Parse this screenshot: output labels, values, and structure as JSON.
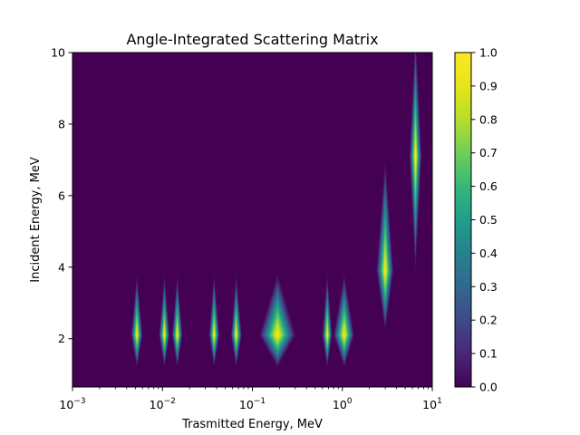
{
  "chart_data": {
    "type": "heatmap",
    "title": "Angle-Integrated Scattering Matrix",
    "xlabel": "Trasmitted Energy, MeV",
    "ylabel": "Incident Energy, MeV",
    "xscale": "log",
    "xlim": [
      0.001,
      10
    ],
    "ylim": [
      0.65,
      10
    ],
    "x_tick_labels": [
      {
        "value": 0.001,
        "base": "10",
        "exp": "−3"
      },
      {
        "value": 0.01,
        "base": "10",
        "exp": "−2"
      },
      {
        "value": 0.1,
        "base": "10",
        "exp": "−1"
      },
      {
        "value": 1,
        "base": "10",
        "exp": "0"
      },
      {
        "value": 10,
        "base": "10",
        "exp": "1"
      }
    ],
    "y_ticks": [
      2,
      4,
      6,
      8,
      10
    ],
    "y_tick_labels": [
      "2",
      "4",
      "6",
      "8",
      "10"
    ],
    "colorbar": {
      "colormap": "viridis",
      "range": [
        0.0,
        1.0
      ],
      "ticks": [
        0.0,
        0.1,
        0.2,
        0.3,
        0.4,
        0.5,
        0.6,
        0.7,
        0.8,
        0.9,
        1.0
      ],
      "tick_labels": [
        "0.0",
        "0.1",
        "0.2",
        "0.3",
        "0.4",
        "0.5",
        "0.6",
        "0.7",
        "0.8",
        "0.9",
        "1.0"
      ]
    },
    "background_value": 0.0,
    "peaks": [
      {
        "x_lo": 0.0045,
        "x_c": 0.0052,
        "x_hi": 0.006,
        "y_lo": 1.2,
        "y_c": 2.1,
        "y_hi": 3.8,
        "peak": 1.0
      },
      {
        "x_lo": 0.0092,
        "x_c": 0.0105,
        "x_hi": 0.012,
        "y_lo": 1.2,
        "y_c": 2.1,
        "y_hi": 3.8,
        "peak": 1.0
      },
      {
        "x_lo": 0.0128,
        "x_c": 0.0146,
        "x_hi": 0.0167,
        "y_lo": 1.2,
        "y_c": 2.1,
        "y_hi": 3.8,
        "peak": 1.0
      },
      {
        "x_lo": 0.033,
        "x_c": 0.0375,
        "x_hi": 0.043,
        "y_lo": 1.2,
        "y_c": 2.1,
        "y_hi": 3.8,
        "peak": 1.0
      },
      {
        "x_lo": 0.058,
        "x_c": 0.066,
        "x_hi": 0.076,
        "y_lo": 1.2,
        "y_c": 2.1,
        "y_hi": 3.8,
        "peak": 1.0
      },
      {
        "x_lo": 0.12,
        "x_c": 0.19,
        "x_hi": 0.3,
        "y_lo": 1.2,
        "y_c": 2.1,
        "y_hi": 3.8,
        "peak": 1.0
      },
      {
        "x_lo": 0.6,
        "x_c": 0.68,
        "x_hi": 0.77,
        "y_lo": 1.2,
        "y_c": 2.1,
        "y_hi": 3.8,
        "peak": 1.0
      },
      {
        "x_lo": 0.8,
        "x_c": 1.05,
        "x_hi": 1.35,
        "y_lo": 1.2,
        "y_c": 2.1,
        "y_hi": 3.8,
        "peak": 1.0
      },
      {
        "x_lo": 2.4,
        "x_c": 3.0,
        "x_hi": 3.7,
        "y_lo": 2.2,
        "y_c": 3.9,
        "y_hi": 7.0,
        "peak": 1.0
      },
      {
        "x_lo": 5.6,
        "x_c": 6.5,
        "x_hi": 7.6,
        "y_lo": 3.9,
        "y_c": 7.1,
        "y_hi": 10.5,
        "peak": 1.0
      }
    ]
  }
}
